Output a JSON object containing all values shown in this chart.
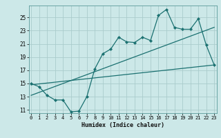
{
  "title": "",
  "xlabel": "Humidex (Indice chaleur)",
  "bg_color": "#cce8e8",
  "grid_color": "#aacccc",
  "line_color": "#1a7070",
  "x_data": [
    0,
    1,
    2,
    3,
    4,
    5,
    6,
    7,
    8,
    9,
    10,
    11,
    12,
    13,
    14,
    15,
    16,
    17,
    18,
    19,
    20,
    21,
    22,
    23
  ],
  "y_data": [
    15.0,
    14.5,
    13.2,
    12.5,
    12.5,
    10.7,
    10.8,
    13.0,
    17.2,
    19.5,
    20.2,
    22.0,
    21.3,
    21.2,
    22.0,
    21.5,
    25.3,
    26.2,
    23.5,
    23.2,
    23.2,
    24.8,
    20.8,
    17.8
  ],
  "trend1_x": [
    0,
    23
  ],
  "trend1_y": [
    14.8,
    17.8
  ],
  "trend2_x": [
    0,
    23
  ],
  "trend2_y": [
    13.2,
    23.5
  ],
  "xlim": [
    -0.3,
    23.3
  ],
  "ylim": [
    10.5,
    26.8
  ],
  "xticks": [
    0,
    1,
    2,
    3,
    4,
    5,
    6,
    7,
    8,
    9,
    10,
    11,
    12,
    13,
    14,
    15,
    16,
    17,
    18,
    19,
    20,
    21,
    22,
    23
  ],
  "yticks": [
    11,
    13,
    15,
    17,
    19,
    21,
    23,
    25
  ]
}
